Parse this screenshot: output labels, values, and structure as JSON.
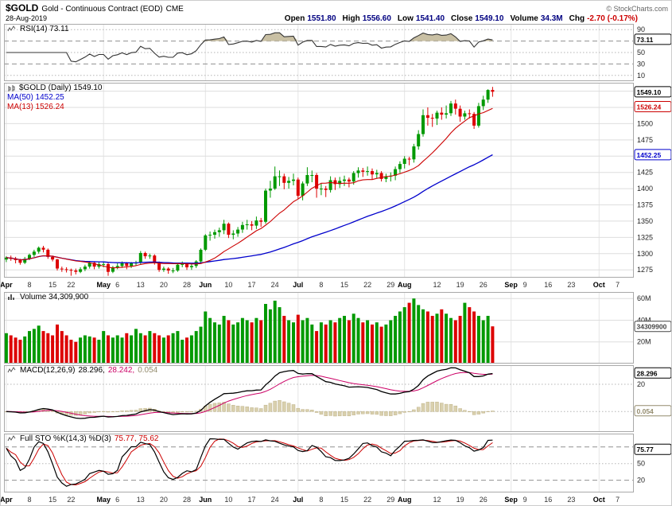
{
  "header": {
    "symbol": "$GOLD",
    "name": "Gold - Continuous Contract (EOD)",
    "exchange": "CME",
    "copyright": "© StockCharts.com",
    "date": "28-Aug-2019",
    "quote": [
      {
        "label": "Open",
        "value": "1551.80"
      },
      {
        "label": "High",
        "value": "1556.60"
      },
      {
        "label": "Low",
        "value": "1541.40"
      },
      {
        "label": "Close",
        "value": "1549.10"
      },
      {
        "label": "Volume",
        "value": "34.3M"
      },
      {
        "label": "Chg",
        "value": "-2.70 (-0.17%)",
        "color": "#cc0000"
      }
    ]
  },
  "legends": {
    "rsi": "RSI(14) 73.11",
    "price_main": "$GOLD (Daily) 1549.10",
    "price_ma50": "MA(50) 1452.25",
    "price_ma13": "MA(13) 1526.24",
    "volume": "Volume 34,309,900",
    "macd_label": "MACD(12,26,9)",
    "macd_v1": "28.296,",
    "macd_v2": "28.242,",
    "macd_v3": "0.054",
    "sto_label": "Full STO %K(14,3) %D(3)",
    "sto_values": "75.77, 75.62"
  },
  "chart_data": {
    "type": "candlestick",
    "title": "$GOLD Gold - Continuous Contract (EOD) CME",
    "date_range": "Apr 2019 - Oct 2019 (daily)",
    "total_slots": 136,
    "month_grid_indices": [
      0,
      21,
      43,
      63,
      86,
      109,
      128
    ],
    "x_ticks": [
      [
        0,
        "Apr",
        1
      ],
      [
        5,
        "8",
        0
      ],
      [
        10,
        "15",
        0
      ],
      [
        14,
        "22",
        0
      ],
      [
        21,
        "May",
        1
      ],
      [
        24,
        "6",
        0
      ],
      [
        29,
        "13",
        0
      ],
      [
        34,
        "20",
        0
      ],
      [
        39,
        "28",
        0
      ],
      [
        43,
        "Jun",
        1
      ],
      [
        48,
        "10",
        0
      ],
      [
        53,
        "17",
        0
      ],
      [
        58,
        "24",
        0
      ],
      [
        63,
        "Jul",
        1
      ],
      [
        68,
        "8",
        0
      ],
      [
        73,
        "15",
        0
      ],
      [
        78,
        "22",
        0
      ],
      [
        83,
        "29",
        0
      ],
      [
        86,
        "Aug",
        1
      ],
      [
        93,
        "12",
        0
      ],
      [
        98,
        "19",
        0
      ],
      [
        103,
        "26",
        0
      ],
      [
        109,
        "Sep",
        1
      ],
      [
        112,
        "9",
        0
      ],
      [
        117,
        "16",
        0
      ],
      [
        122,
        "23",
        0
      ],
      [
        128,
        "Oct",
        1
      ],
      [
        132,
        "7",
        0
      ]
    ],
    "colors": {
      "up": "#009900",
      "down": "#dd0000",
      "ma50": "#0000cc",
      "ma13": "#cc0000",
      "macd": "#000000",
      "signal": "#cc0066",
      "hist_fill": "#d9d0ae",
      "hist_stroke": "#bfb389",
      "rsi_fill": "#c9c0a4",
      "rsi_line": "#333333",
      "sto_k": "#000000",
      "sto_d": "#cc0000"
    },
    "candles": [
      [
        1291,
        1296,
        1287,
        1294
      ],
      [
        1294,
        1297,
        1289,
        1292
      ],
      [
        1292,
        1295,
        1285,
        1290
      ],
      [
        1290,
        1292,
        1283,
        1286
      ],
      [
        1286,
        1295,
        1284,
        1292
      ],
      [
        1292,
        1300,
        1290,
        1298
      ],
      [
        1298,
        1306,
        1295,
        1303
      ],
      [
        1303,
        1311,
        1300,
        1309
      ],
      [
        1309,
        1312,
        1302,
        1306
      ],
      [
        1306,
        1308,
        1292,
        1295
      ],
      [
        1295,
        1297,
        1288,
        1291
      ],
      [
        1291,
        1292,
        1274,
        1277
      ],
      [
        1277,
        1280,
        1272,
        1276
      ],
      [
        1276,
        1279,
        1271,
        1275
      ],
      [
        1275,
        1277,
        1266,
        1274
      ],
      [
        1274,
        1277,
        1268,
        1272
      ],
      [
        1272,
        1279,
        1270,
        1276
      ],
      [
        1276,
        1283,
        1273,
        1280
      ],
      [
        1280,
        1288,
        1277,
        1286
      ],
      [
        1286,
        1288,
        1276,
        1280
      ],
      [
        1280,
        1287,
        1277,
        1284
      ],
      [
        1284,
        1287,
        1279,
        1284
      ],
      [
        1284,
        1286,
        1266,
        1272
      ],
      [
        1272,
        1281,
        1270,
        1279
      ],
      [
        1279,
        1285,
        1276,
        1281
      ],
      [
        1281,
        1288,
        1278,
        1285
      ],
      [
        1285,
        1287,
        1276,
        1281
      ],
      [
        1281,
        1287,
        1278,
        1285
      ],
      [
        1285,
        1289,
        1281,
        1286
      ],
      [
        1286,
        1304,
        1284,
        1301
      ],
      [
        1301,
        1303,
        1292,
        1296
      ],
      [
        1296,
        1300,
        1292,
        1297
      ],
      [
        1297,
        1299,
        1283,
        1286
      ],
      [
        1286,
        1288,
        1272,
        1275
      ],
      [
        1275,
        1280,
        1272,
        1277
      ],
      [
        1277,
        1279,
        1269,
        1274
      ],
      [
        1274,
        1278,
        1270,
        1274
      ],
      [
        1274,
        1285,
        1272,
        1283
      ],
      [
        1283,
        1288,
        1279,
        1284
      ],
      [
        1284,
        1286,
        1275,
        1279
      ],
      [
        1279,
        1284,
        1275,
        1281
      ],
      [
        1281,
        1290,
        1278,
        1288
      ],
      [
        1288,
        1308,
        1285,
        1306
      ],
      [
        1306,
        1330,
        1304,
        1328
      ],
      [
        1328,
        1334,
        1320,
        1329
      ],
      [
        1329,
        1337,
        1323,
        1333
      ],
      [
        1333,
        1340,
        1326,
        1336
      ],
      [
        1336,
        1352,
        1330,
        1346
      ],
      [
        1346,
        1348,
        1324,
        1329
      ],
      [
        1329,
        1336,
        1322,
        1331
      ],
      [
        1331,
        1341,
        1326,
        1337
      ],
      [
        1337,
        1349,
        1332,
        1344
      ],
      [
        1344,
        1352,
        1337,
        1345
      ],
      [
        1345,
        1350,
        1336,
        1343
      ],
      [
        1343,
        1357,
        1338,
        1351
      ],
      [
        1351,
        1355,
        1341,
        1349
      ],
      [
        1349,
        1400,
        1346,
        1397
      ],
      [
        1397,
        1412,
        1386,
        1400
      ],
      [
        1400,
        1434,
        1398,
        1419
      ],
      [
        1419,
        1428,
        1404,
        1419
      ],
      [
        1419,
        1423,
        1399,
        1409
      ],
      [
        1409,
        1418,
        1400,
        1412
      ],
      [
        1412,
        1423,
        1405,
        1414
      ],
      [
        1414,
        1417,
        1384,
        1389
      ],
      [
        1389,
        1411,
        1382,
        1408
      ],
      [
        1408,
        1433,
        1404,
        1421
      ],
      [
        1421,
        1428,
        1410,
        1421
      ],
      [
        1421,
        1424,
        1386,
        1400
      ],
      [
        1400,
        1408,
        1390,
        1400
      ],
      [
        1400,
        1404,
        1387,
        1398
      ],
      [
        1398,
        1419,
        1394,
        1413
      ],
      [
        1413,
        1417,
        1398,
        1407
      ],
      [
        1407,
        1418,
        1401,
        1412
      ],
      [
        1412,
        1420,
        1404,
        1414
      ],
      [
        1414,
        1417,
        1402,
        1411
      ],
      [
        1411,
        1427,
        1406,
        1424
      ],
      [
        1424,
        1433,
        1417,
        1428
      ],
      [
        1428,
        1432,
        1418,
        1426
      ],
      [
        1426,
        1434,
        1420,
        1427
      ],
      [
        1427,
        1431,
        1414,
        1422
      ],
      [
        1422,
        1429,
        1416,
        1424
      ],
      [
        1424,
        1427,
        1411,
        1415
      ],
      [
        1415,
        1423,
        1410,
        1419
      ],
      [
        1419,
        1425,
        1411,
        1420
      ],
      [
        1420,
        1434,
        1413,
        1430
      ],
      [
        1430,
        1442,
        1424,
        1438
      ],
      [
        1438,
        1450,
        1431,
        1446
      ],
      [
        1446,
        1449,
        1436,
        1445
      ],
      [
        1445,
        1469,
        1440,
        1465
      ],
      [
        1465,
        1490,
        1460,
        1484
      ],
      [
        1484,
        1522,
        1480,
        1513
      ],
      [
        1513,
        1525,
        1497,
        1509
      ],
      [
        1509,
        1515,
        1495,
        1508
      ],
      [
        1508,
        1520,
        1498,
        1517
      ],
      [
        1517,
        1525,
        1506,
        1514
      ],
      [
        1514,
        1528,
        1508,
        1516
      ],
      [
        1516,
        1535,
        1512,
        1531
      ],
      [
        1531,
        1537,
        1514,
        1523
      ],
      [
        1523,
        1528,
        1503,
        1511
      ],
      [
        1511,
        1520,
        1506,
        1516
      ],
      [
        1516,
        1522,
        1508,
        1515
      ],
      [
        1515,
        1518,
        1492,
        1497
      ],
      [
        1497,
        1532,
        1494,
        1527
      ],
      [
        1527,
        1543,
        1521,
        1537
      ],
      [
        1537,
        1553,
        1532,
        1551.8
      ],
      [
        1551.8,
        1556.6,
        1541.4,
        1549.1
      ]
    ],
    "volumes_millions": [
      28,
      26,
      24,
      22,
      25,
      30,
      32,
      35,
      30,
      28,
      26,
      36,
      30,
      26,
      22,
      20,
      24,
      26,
      25,
      24,
      22,
      30,
      26,
      24,
      26,
      24,
      28,
      26,
      32,
      28,
      26,
      30,
      28,
      26,
      24,
      26,
      28,
      30,
      22,
      24,
      26,
      30,
      34,
      48,
      42,
      38,
      36,
      44,
      40,
      36,
      38,
      42,
      40,
      38,
      42,
      40,
      55,
      50,
      58,
      52,
      44,
      40,
      38,
      45,
      40,
      42,
      36,
      30,
      38,
      36,
      40,
      38,
      42,
      44,
      40,
      46,
      42,
      38,
      40,
      36,
      38,
      34,
      36,
      40,
      44,
      48,
      52,
      56,
      60,
      54,
      50,
      48,
      44,
      46,
      50,
      46,
      42,
      40,
      44,
      56,
      52,
      48,
      44,
      40,
      44,
      34.3
    ],
    "panels": {
      "rsi": {
        "indicator": "RSI(14)",
        "last_value": 73.11,
        "range": [
          0,
          100
        ],
        "gridlines": [
          {
            "v": 90,
            "label": "90",
            "style": "dot"
          },
          {
            "v": 70,
            "label": "70",
            "style": "dash"
          },
          {
            "v": 50,
            "label": "50",
            "style": "dot"
          },
          {
            "v": 30,
            "label": "30",
            "style": "dash"
          },
          {
            "v": 10,
            "label": "10",
            "style": "dot"
          }
        ],
        "badges": [
          {
            "v": 73.11,
            "text": "73.11",
            "color": "#000000"
          }
        ]
      },
      "price": {
        "indicator": "$GOLD Daily candlesticks with MA(50) and MA(13)",
        "last_close": 1549.1,
        "ma50": 1452.25,
        "ma13": 1526.24,
        "range": [
          1263,
          1563
        ],
        "gridlines": [
          {
            "v": 1275,
            "label": "1275",
            "style": "solid"
          },
          {
            "v": 1300,
            "label": "1300",
            "style": "solid"
          },
          {
            "v": 1325,
            "label": "1325",
            "style": "solid"
          },
          {
            "v": 1350,
            "label": "1350",
            "style": "solid"
          },
          {
            "v": 1375,
            "label": "1375",
            "style": "solid"
          },
          {
            "v": 1400,
            "label": "1400",
            "style": "solid"
          },
          {
            "v": 1425,
            "label": "1425",
            "style": "solid"
          },
          {
            "v": 1450,
            "label": "",
            "style": "solid"
          },
          {
            "v": 1475,
            "label": "1475",
            "style": "solid"
          },
          {
            "v": 1500,
            "label": "1500",
            "style": "solid"
          },
          {
            "v": 1525,
            "label": "",
            "style": "solid"
          },
          {
            "v": 1550,
            "label": "",
            "style": "solid"
          }
        ],
        "badges": [
          {
            "v": 1549.1,
            "text": "1549.10",
            "color": "#000000"
          },
          {
            "v": 1526.24,
            "text": "1526.24",
            "color": "#cc0000"
          },
          {
            "v": 1452.25,
            "text": "1452.25",
            "color": "#0000cc"
          }
        ]
      },
      "volume": {
        "indicator": "Volume",
        "last_value": 34309900,
        "range": [
          0,
          66
        ],
        "gridlines": [
          {
            "v": 60,
            "label": "60M",
            "style": "solid"
          },
          {
            "v": 40,
            "label": "40M",
            "style": "solid"
          },
          {
            "v": 20,
            "label": "20M",
            "style": "solid"
          }
        ],
        "badges": [
          {
            "v": 34.3,
            "text": "34309900",
            "color": "#444444"
          }
        ]
      },
      "macd": {
        "indicator": "MACD(12,26,9)",
        "macd": 28.296,
        "signal": 28.242,
        "hist": 0.054,
        "range": [
          -15,
          34
        ],
        "gridlines": [
          {
            "v": 20,
            "label": "20",
            "style": "dot"
          },
          {
            "v": 0,
            "label": "0",
            "style": "dot"
          }
        ],
        "badges": [
          {
            "v": 28.296,
            "text": "28.296",
            "color": "#000000"
          },
          {
            "v": 0.6,
            "text": "0.054",
            "color": "#938b6d"
          }
        ]
      },
      "sto": {
        "indicator": "Full STO %K(14,3) %D(3)",
        "k": 75.77,
        "d": 75.62,
        "range": [
          -2,
          104
        ],
        "gridlines": [
          {
            "v": 80,
            "label": "80",
            "style": "dash"
          },
          {
            "v": 50,
            "label": "50",
            "style": "dot"
          },
          {
            "v": 20,
            "label": "20",
            "style": "dash"
          }
        ],
        "badges": [
          {
            "v": 75.77,
            "text": "75.77",
            "color": "#000000"
          }
        ]
      }
    }
  }
}
